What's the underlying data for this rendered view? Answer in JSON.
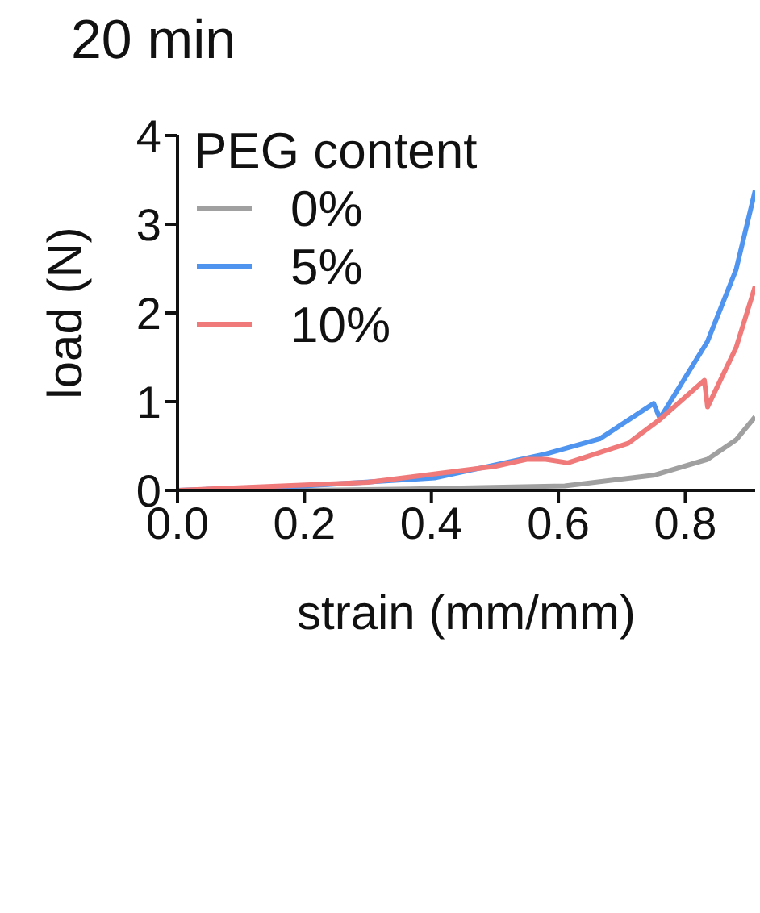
{
  "chart_data": {
    "type": "line",
    "title": "20 min",
    "xlabel": "strain (mm/mm)",
    "ylabel": "load (N)",
    "legend_title": "PEG content",
    "legend": "top left",
    "grid": false,
    "marker": "none",
    "line_style": "solid",
    "xlim": [
      0,
      0.91
    ],
    "xticks": [
      {
        "value": 0,
        "label": "0.0"
      },
      {
        "value": 0.2,
        "label": "0.2"
      },
      {
        "value": 0.4,
        "label": "0.4"
      },
      {
        "value": 0.6,
        "label": "0.6"
      },
      {
        "value": 0.8,
        "label": "0.8"
      }
    ],
    "ylim": [
      0,
      4
    ],
    "yticks": [
      0,
      1,
      2,
      3,
      4
    ],
    "series": [
      {
        "name": "0%",
        "color": "#a0a0a0",
        "x": [
          0,
          0.2,
          0.4,
          0.61,
          0.75,
          0.835,
          0.88,
          0.91
        ],
        "values": [
          0,
          0,
          0.02,
          0.05,
          0.17,
          0.35,
          0.57,
          0.83
        ]
      },
      {
        "name": "5%",
        "color": "#4f94ef",
        "x": [
          0,
          0.2,
          0.405,
          0.58,
          0.665,
          0.75,
          0.76,
          0.835,
          0.88,
          0.91
        ],
        "values": [
          0,
          0.05,
          0.14,
          0.41,
          0.58,
          0.98,
          0.81,
          1.68,
          2.49,
          3.38
        ]
      },
      {
        "name": "10%",
        "color": "#f07a7a",
        "x": [
          0,
          0.3,
          0.5,
          0.55,
          0.58,
          0.615,
          0.71,
          0.76,
          0.83,
          0.835,
          0.88,
          0.91
        ],
        "values": [
          0,
          0.09,
          0.27,
          0.35,
          0.35,
          0.31,
          0.53,
          0.8,
          1.24,
          0.94,
          1.61,
          2.3
        ]
      }
    ]
  }
}
